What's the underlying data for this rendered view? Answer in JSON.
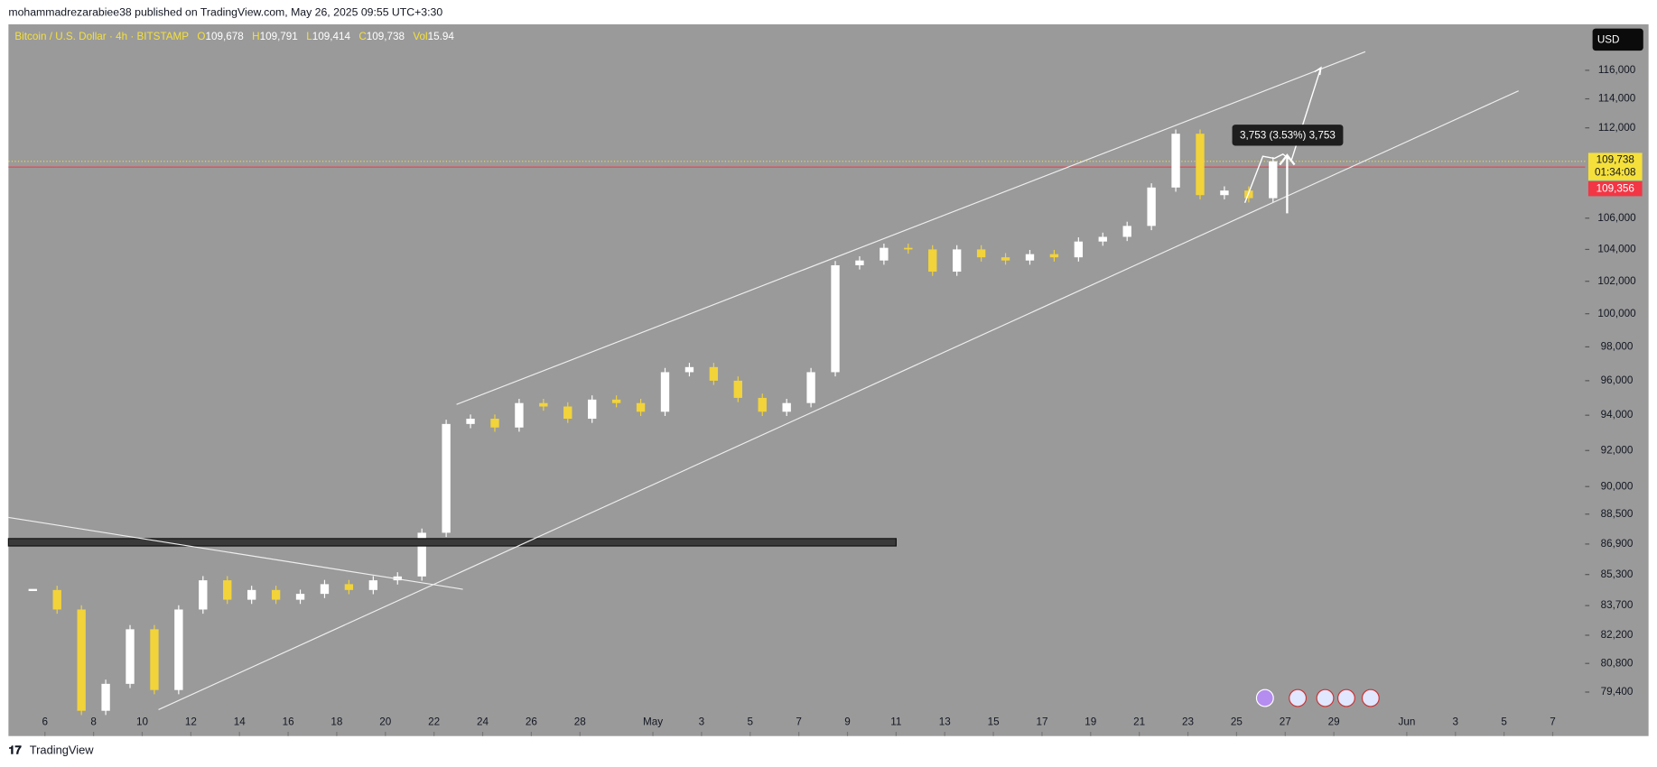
{
  "header": {
    "publisher": "mohammadrezarabiee38 published on TradingView.com, May 26, 2025 09:55 UTC+3:30"
  },
  "footer": {
    "brand": "TradingView"
  },
  "chart_data": {
    "type": "candlestick",
    "title": "Bitcoin / U.S. Dollar · 4h · BITSTAMP",
    "ohlc_legend": [
      {
        "label": "O",
        "value": 109678,
        "value_label": "109,678"
      },
      {
        "label": "H",
        "value": 109791,
        "value_label": "109,791"
      },
      {
        "label": "L",
        "value": 109414,
        "value_label": "109,414"
      },
      {
        "label": "C",
        "value": 109738,
        "value_label": "109,738"
      },
      {
        "label": "Vol",
        "value": 15.94
      }
    ],
    "currency": "USD",
    "x": [
      "04-05",
      "04-06",
      "04-07",
      "04-08",
      "04-09",
      "04-10",
      "04-11",
      "04-12",
      "04-13",
      "04-14",
      "04-15",
      "04-16",
      "04-17",
      "04-18",
      "04-19",
      "04-20",
      "04-21",
      "04-22",
      "04-23",
      "04-24",
      "04-25",
      "04-26",
      "04-27",
      "04-28",
      "04-29",
      "04-30",
      "05-01",
      "05-02",
      "05-03",
      "05-04",
      "05-05",
      "05-06",
      "05-07",
      "05-08",
      "05-09",
      "05-10",
      "05-11",
      "05-12",
      "05-13",
      "05-14",
      "05-15",
      "05-16",
      "05-17",
      "05-18",
      "05-19",
      "05-20",
      "05-21",
      "05-22",
      "05-23",
      "05-24",
      "05-25",
      "05-26"
    ],
    "values": [
      84500,
      83500,
      78500,
      79800,
      82500,
      79500,
      83500,
      85000,
      84000,
      84500,
      84000,
      84300,
      84800,
      84500,
      85000,
      85200,
      87500,
      93500,
      93800,
      93300,
      94700,
      94500,
      93800,
      94900,
      94700,
      94200,
      96500,
      96800,
      96000,
      95000,
      94200,
      94700,
      96500,
      103000,
      103300,
      104100,
      104000,
      102600,
      104000,
      103500,
      103300,
      103700,
      103500,
      104500,
      104800,
      105500,
      108000,
      111600,
      107500,
      107800,
      107300,
      109738
    ],
    "up_color": "#ffffff",
    "down_color": "#f2d33a",
    "log_scale": true,
    "ylim": [
      77300,
      119300
    ],
    "yticks": [
      {
        "value": 116000,
        "label": "116,000"
      },
      {
        "value": 114000,
        "label": "114,000"
      },
      {
        "value": 112000,
        "label": "112,000"
      },
      {
        "value": 106000,
        "label": "106,000"
      },
      {
        "value": 104000,
        "label": "104,000"
      },
      {
        "value": 102000,
        "label": "102,000"
      },
      {
        "value": 100000,
        "label": "100,000"
      },
      {
        "value": 98000,
        "label": "98,000"
      },
      {
        "value": 96000,
        "label": "96,000"
      },
      {
        "value": 94000,
        "label": "94,000"
      },
      {
        "value": 92000,
        "label": "92,000"
      },
      {
        "value": 90000,
        "label": "90,000"
      },
      {
        "value": 88500,
        "label": "88,500"
      },
      {
        "value": 86900,
        "label": "86,900"
      },
      {
        "value": 85300,
        "label": "85,300"
      },
      {
        "value": 83700,
        "label": "83,700"
      },
      {
        "value": 82200,
        "label": "82,200"
      },
      {
        "value": 80800,
        "label": "80,800"
      },
      {
        "value": 79400,
        "label": "79,400"
      }
    ],
    "xlim": [
      "04-04 12:00",
      "06-08 08:00"
    ],
    "xticks": [
      {
        "value": "04-06",
        "label": "6"
      },
      {
        "value": "04-08",
        "label": "8"
      },
      {
        "value": "04-10",
        "label": "10"
      },
      {
        "value": "04-12",
        "label": "12"
      },
      {
        "value": "04-14",
        "label": "14"
      },
      {
        "value": "04-16",
        "label": "16"
      },
      {
        "value": "04-18",
        "label": "18"
      },
      {
        "value": "04-20",
        "label": "20"
      },
      {
        "value": "04-22",
        "label": "22"
      },
      {
        "value": "04-24",
        "label": "24"
      },
      {
        "value": "04-26",
        "label": "26"
      },
      {
        "value": "04-28",
        "label": "28"
      },
      {
        "value": "05-01",
        "label": "May"
      },
      {
        "value": "05-03",
        "label": "3"
      },
      {
        "value": "05-05",
        "label": "5"
      },
      {
        "value": "05-07",
        "label": "7"
      },
      {
        "value": "05-09",
        "label": "9"
      },
      {
        "value": "05-11",
        "label": "11"
      },
      {
        "value": "05-13",
        "label": "13"
      },
      {
        "value": "05-15",
        "label": "15"
      },
      {
        "value": "05-17",
        "label": "17"
      },
      {
        "value": "05-19",
        "label": "19"
      },
      {
        "value": "05-21",
        "label": "21"
      },
      {
        "value": "05-23",
        "label": "23"
      },
      {
        "value": "05-25",
        "label": "25"
      },
      {
        "value": "05-27",
        "label": "27"
      },
      {
        "value": "05-29",
        "label": "29"
      },
      {
        "value": "06-01",
        "label": "Jun"
      },
      {
        "value": "06-03",
        "label": "3"
      },
      {
        "value": "06-05",
        "label": "5"
      },
      {
        "value": "06-07",
        "label": "7"
      }
    ],
    "last_price": {
      "value": 109738,
      "label": "109,738",
      "countdown": "01:34:08",
      "color": "#f5e03b"
    },
    "ref_price": {
      "value": 109356,
      "label": "109,356",
      "color": "#f23645"
    },
    "measure": {
      "label": "3,753 (3.53%) 3,753"
    }
  }
}
